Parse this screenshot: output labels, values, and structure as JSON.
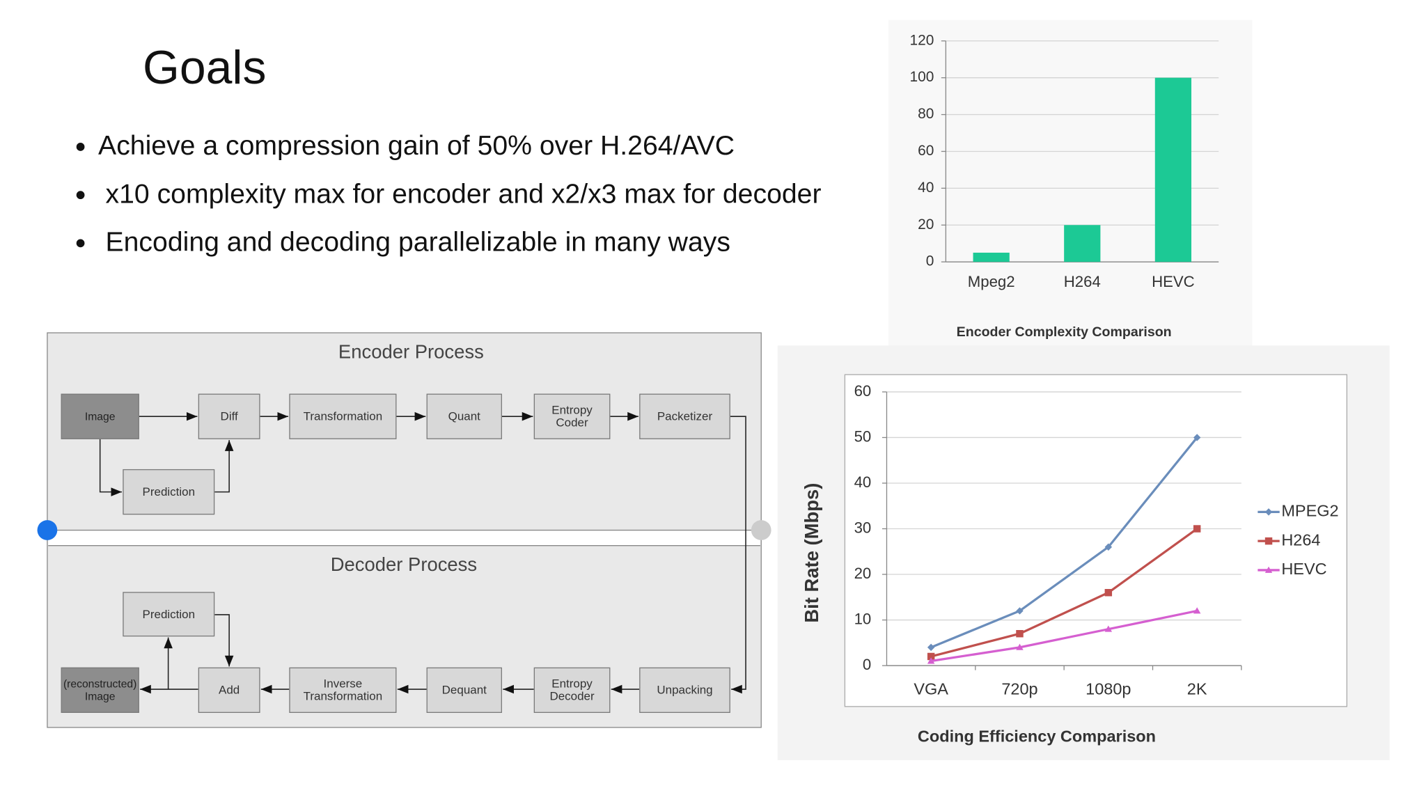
{
  "title": "Goals",
  "bullets": [
    "Achieve a compression gain of 50% over H.264/AVC",
    "x10 complexity max for encoder and x2/x3 max for decoder",
    "Encoding and decoding parallelizable in many ways"
  ],
  "diagram": {
    "encoder": {
      "title": "Encoder Process",
      "nodes": [
        "Image",
        "Diff",
        "Transformation",
        "Quant",
        "Entropy\nCoder",
        "Packetizer",
        "Prediction"
      ]
    },
    "decoder": {
      "title": "Decoder Process",
      "nodes": [
        "Prediction",
        "(reconstructed)\nImage",
        "Add",
        "Inverse\nTransformation",
        "Dequant",
        "Entropy\nDecoder",
        "Unpacking"
      ]
    }
  },
  "chart_data": [
    {
      "type": "bar",
      "title": "Encoder Complexity Comparison",
      "categories": [
        "Mpeg2",
        "H264",
        "HEVC"
      ],
      "values": [
        5,
        20,
        100
      ],
      "color": "#1cc995",
      "ylim": [
        0,
        120
      ],
      "yticks": [
        0,
        20,
        40,
        60,
        80,
        100,
        120
      ],
      "grid": true
    },
    {
      "type": "line",
      "title": "Coding Efficiency Comparison",
      "y_label": "Bit Rate (Mbps)",
      "categories": [
        "VGA",
        "720p",
        "1080p",
        "2K"
      ],
      "series": [
        {
          "name": "MPEG2",
          "color": "#6a8dbb",
          "values": [
            4,
            12,
            26,
            50
          ]
        },
        {
          "name": "H264",
          "color": "#c0504d",
          "values": [
            2,
            7,
            16,
            30
          ]
        },
        {
          "name": "HEVC",
          "color": "#d55fd0",
          "values": [
            1,
            4,
            8,
            12
          ]
        }
      ],
      "ylim": [
        0,
        60
      ],
      "yticks": [
        0,
        10,
        20,
        30,
        40,
        50,
        60
      ],
      "grid": true,
      "legend": "right"
    }
  ]
}
